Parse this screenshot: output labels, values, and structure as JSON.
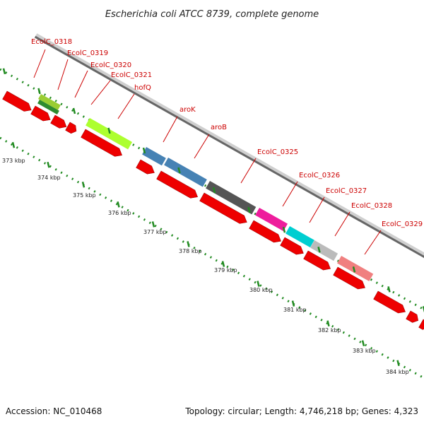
{
  "title": "Escherichia coli ATCC 8739, complete genome",
  "footer": {
    "accession": "Accession: NC_010468",
    "summary": "Topology: circular; Length: 4,746,218 bp; Genes: 4,323"
  },
  "colors": {
    "backbone": "#555555",
    "tick": "#228b22",
    "label": "#cc0000",
    "cds": "#ee0000"
  },
  "gene_labels": [
    {
      "text": "EcolC_0318",
      "color": "#9acd32"
    },
    {
      "text": "EcolC_0319",
      "color": "#2e8b2e"
    },
    {
      "text": "EcolC_0320",
      "color": "#ee0000"
    },
    {
      "text": "EcolC_0321",
      "color": "#ee0000"
    },
    {
      "text": "hofQ",
      "color": "#adff2f"
    },
    {
      "text": "aroK",
      "color": "#4682b4"
    },
    {
      "text": "aroB",
      "color": "#4682b4"
    },
    {
      "text": "EcolC_0325",
      "color": "#555555"
    },
    {
      "text": "EcolC_0326",
      "color": "#ee1d9c"
    },
    {
      "text": "EcolC_0327",
      "color": "#00ced1"
    },
    {
      "text": "EcolC_0328",
      "color": "#bbbbbb"
    },
    {
      "text": "EcolC_0329",
      "color": "#f08080"
    }
  ],
  "ticks": [
    "373 kbp",
    "374 kbp",
    "375 kbp",
    "376 kbp",
    "377 kbp",
    "378 kbp",
    "379 kbp",
    "380 kbp",
    "381 kbp",
    "382 kbp",
    "383 kbp",
    "384 kbp"
  ]
}
